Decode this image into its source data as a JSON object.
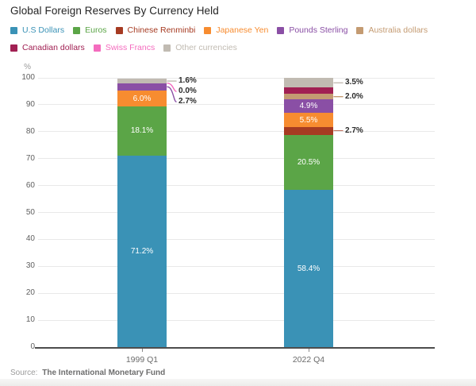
{
  "title": "Global Foreign Reserves By Currency Held",
  "source": {
    "prefix": "Source:",
    "text": "The International Monetary Fund"
  },
  "legend": [
    {
      "label": "U.S Dollars",
      "color": "#3a92b6"
    },
    {
      "label": "Euros",
      "color": "#5ba547"
    },
    {
      "label": "Chinese Renminbi",
      "color": "#a63b22"
    },
    {
      "label": "Japanese Yen",
      "color": "#f78c30"
    },
    {
      "label": "Pounds Sterling",
      "color": "#8a4fa5"
    },
    {
      "label": "Australia dollars",
      "color": "#c49b72"
    },
    {
      "label": "Canadian dollars",
      "color": "#a12053"
    },
    {
      "label": "Swiss Francs",
      "color": "#f46cbe"
    },
    {
      "label": "Other currencies",
      "color": "#c1bbb2"
    }
  ],
  "chart_data": {
    "type": "bar",
    "stacked": true,
    "title": "Global Foreign Reserves By Currency Held",
    "ylabel": "%",
    "ylim": [
      0,
      100
    ],
    "ytick_step": 10,
    "grid": true,
    "legend_position": "top",
    "categories": [
      "1999 Q1",
      "2022 Q4"
    ],
    "bars": [
      {
        "category": "1999 Q1",
        "segments": [
          {
            "currency": "U.S Dollars",
            "value": 71.2,
            "label": "71.2%",
            "label_style": "inside"
          },
          {
            "currency": "Euros",
            "value": 18.1,
            "label": "18.1%",
            "label_style": "inside"
          },
          {
            "currency": "Japanese Yen",
            "value": 6.0,
            "label": "6.0%",
            "label_style": "inside"
          },
          {
            "currency": "Pounds Sterling",
            "value": 2.7,
            "label": "2.7%",
            "label_style": "callout"
          },
          {
            "currency": "Swiss Francs",
            "value": 0.0,
            "label": "0.0%",
            "label_style": "callout"
          },
          {
            "currency": "Other currencies",
            "value": 1.6,
            "label": "1.6%",
            "label_style": "callout"
          }
        ]
      },
      {
        "category": "2022 Q4",
        "segments": [
          {
            "currency": "U.S Dollars",
            "value": 58.4,
            "label": "58.4%",
            "label_style": "inside"
          },
          {
            "currency": "Euros",
            "value": 20.5,
            "label": "20.5%",
            "label_style": "inside"
          },
          {
            "currency": "Chinese Renminbi",
            "value": 2.7,
            "label": "2.7%",
            "label_style": "callout"
          },
          {
            "currency": "Japanese Yen",
            "value": 5.5,
            "label": "5.5%",
            "label_style": "inside"
          },
          {
            "currency": "Pounds Sterling",
            "value": 4.9,
            "label": "4.9%",
            "label_style": "inside"
          },
          {
            "currency": "Australia dollars",
            "value": 2.0,
            "label": "2.0%",
            "label_style": "callout"
          },
          {
            "currency": "Canadian dollars",
            "value": 2.4,
            "label": "",
            "label_style": "none"
          },
          {
            "currency": "Other currencies",
            "value": 3.5,
            "label": "3.5%",
            "label_style": "callout"
          }
        ]
      }
    ]
  }
}
